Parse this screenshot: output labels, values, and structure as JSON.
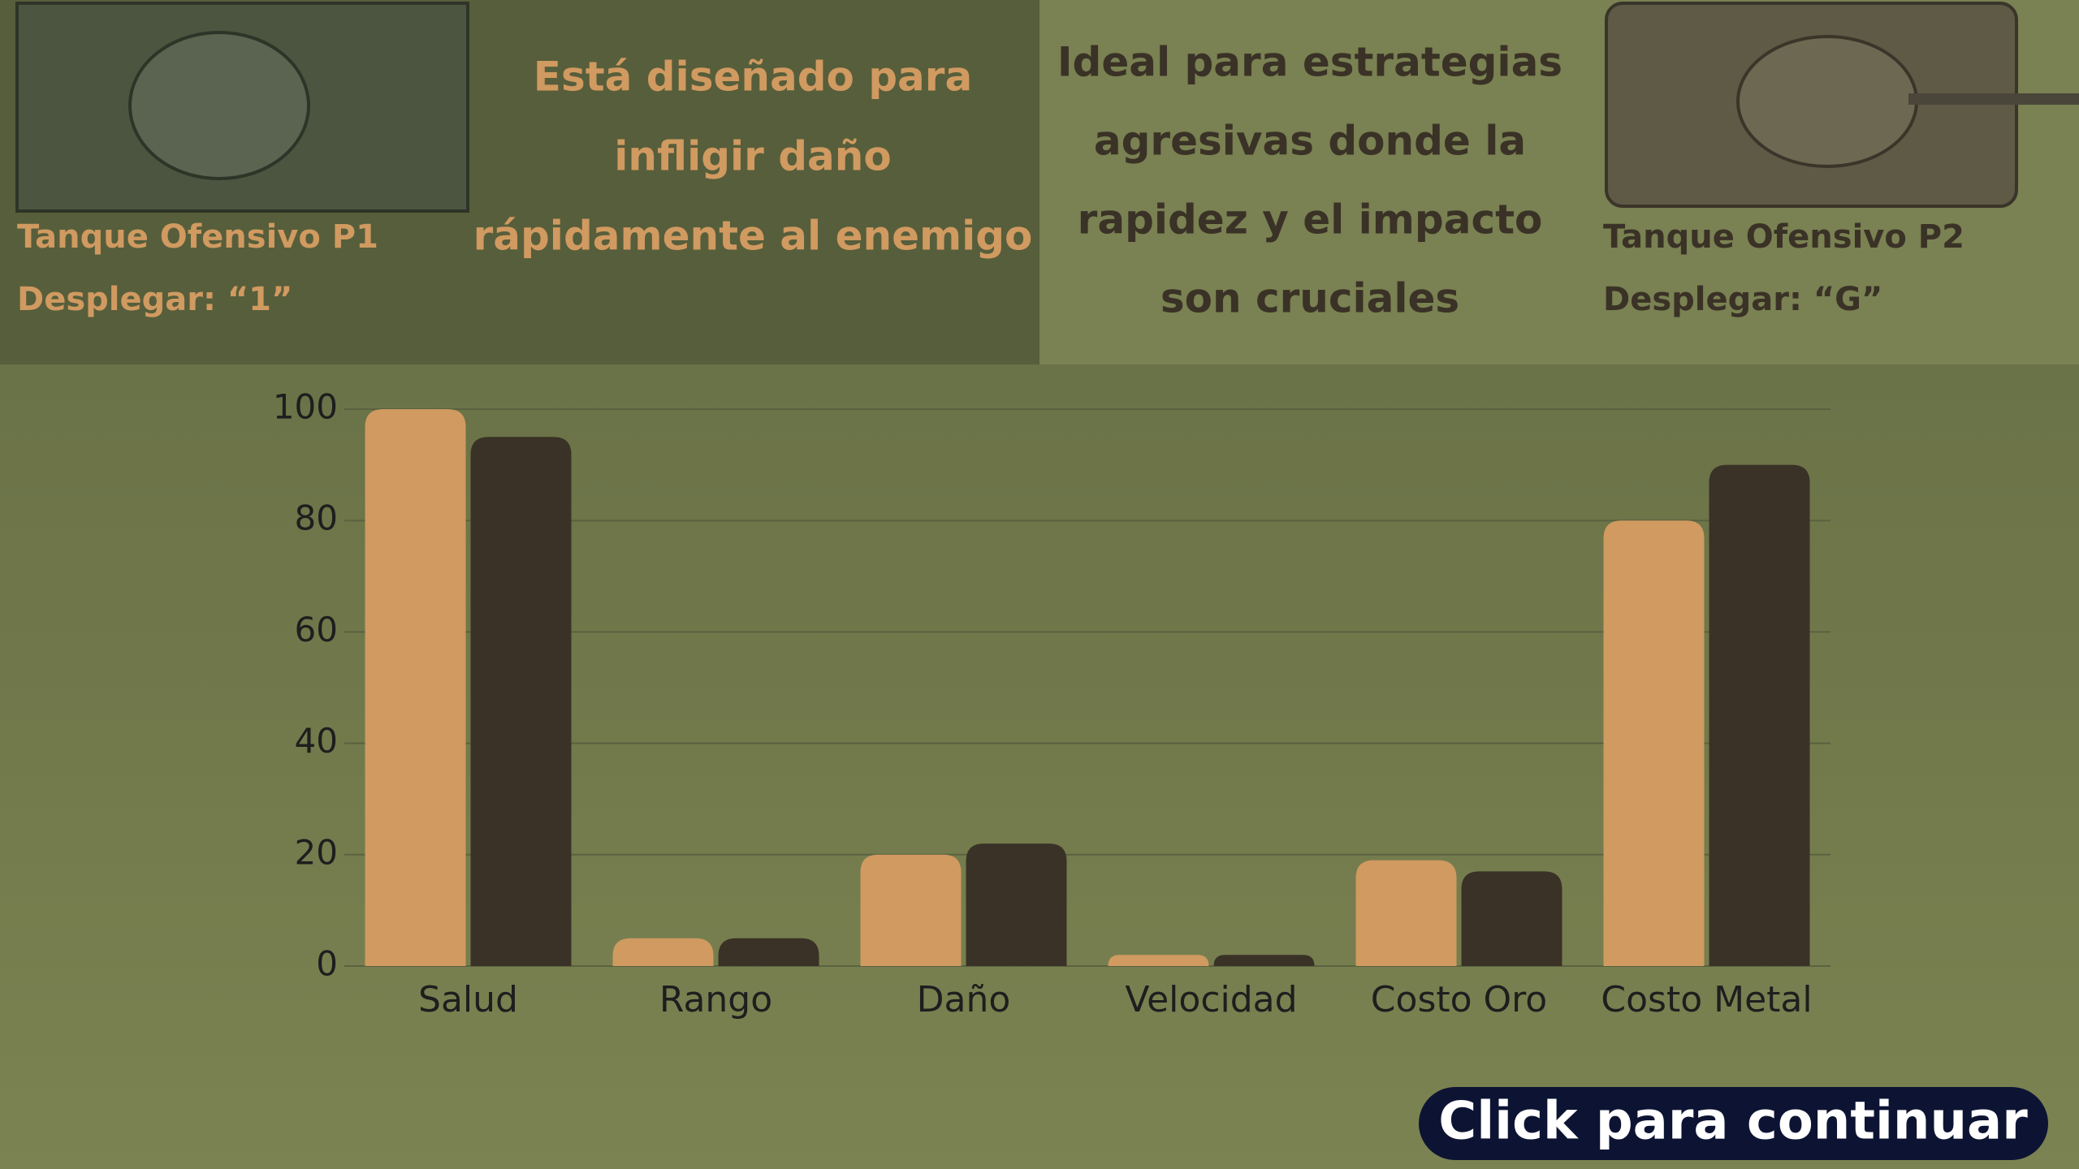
{
  "left_panel": {
    "tank_name": "Tanque Ofensivo P1",
    "deploy": "Desplegar: “1”",
    "description": [
      "Está diseñado para",
      "infligir daño",
      "rápidamente al enemigo"
    ]
  },
  "right_panel": {
    "tank_name": "Tanque Ofensivo P2",
    "deploy": "Desplegar: “G”",
    "description": [
      "Ideal para estrategias",
      "agresivas donde la",
      "rapidez y el impacto",
      "son cruciales"
    ]
  },
  "chart_data": {
    "type": "bar",
    "categories": [
      "Salud",
      "Rango",
      "Daño",
      "Velocidad",
      "Costo Oro",
      "Costo Metal"
    ],
    "series": [
      {
        "color": "#d09a60",
        "values": [
          100,
          5,
          20,
          2,
          19,
          80
        ]
      },
      {
        "color": "#3a3226",
        "values": [
          95,
          5,
          22,
          2,
          17,
          90
        ]
      }
    ],
    "ylim": [
      0,
      100
    ],
    "yticks": [
      0,
      20,
      40,
      60,
      80,
      100
    ],
    "grid": true
  },
  "button": {
    "label": "Click para continuar"
  }
}
